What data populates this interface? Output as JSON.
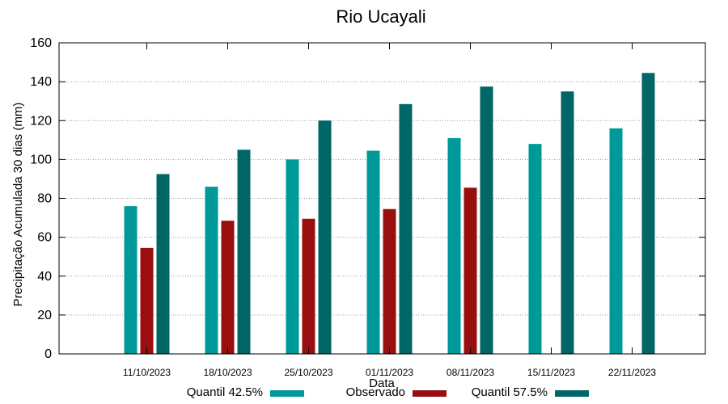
{
  "chart_data": {
    "type": "bar",
    "title": "Rio Ucayali",
    "xlabel": "Data",
    "ylabel": "Precipitação Acumulada 30 dias (mm)",
    "ylim": [
      0,
      160
    ],
    "yticks": [
      "0",
      "20",
      "40",
      "60",
      "80",
      "100",
      "120",
      "140",
      "160"
    ],
    "grid": true,
    "legend_position": "bottom",
    "categories": [
      "11/10/2023",
      "18/10/2023",
      "25/10/2023",
      "01/11/2023",
      "08/11/2023",
      "15/11/2023",
      "22/11/2023"
    ],
    "series": [
      {
        "name": "Quantil 42.5%",
        "color": "#009999",
        "values": [
          76,
          86,
          100,
          104.5,
          111,
          108,
          116
        ]
      },
      {
        "name": "Observado",
        "color": "#990f0f",
        "values": [
          54.5,
          68.5,
          69.5,
          74.5,
          85.5,
          null,
          null
        ]
      },
      {
        "name": "Quantil 57.5%",
        "color": "#006666",
        "values": [
          92.5,
          105,
          120,
          128.5,
          137.5,
          135,
          144.5
        ]
      }
    ]
  }
}
